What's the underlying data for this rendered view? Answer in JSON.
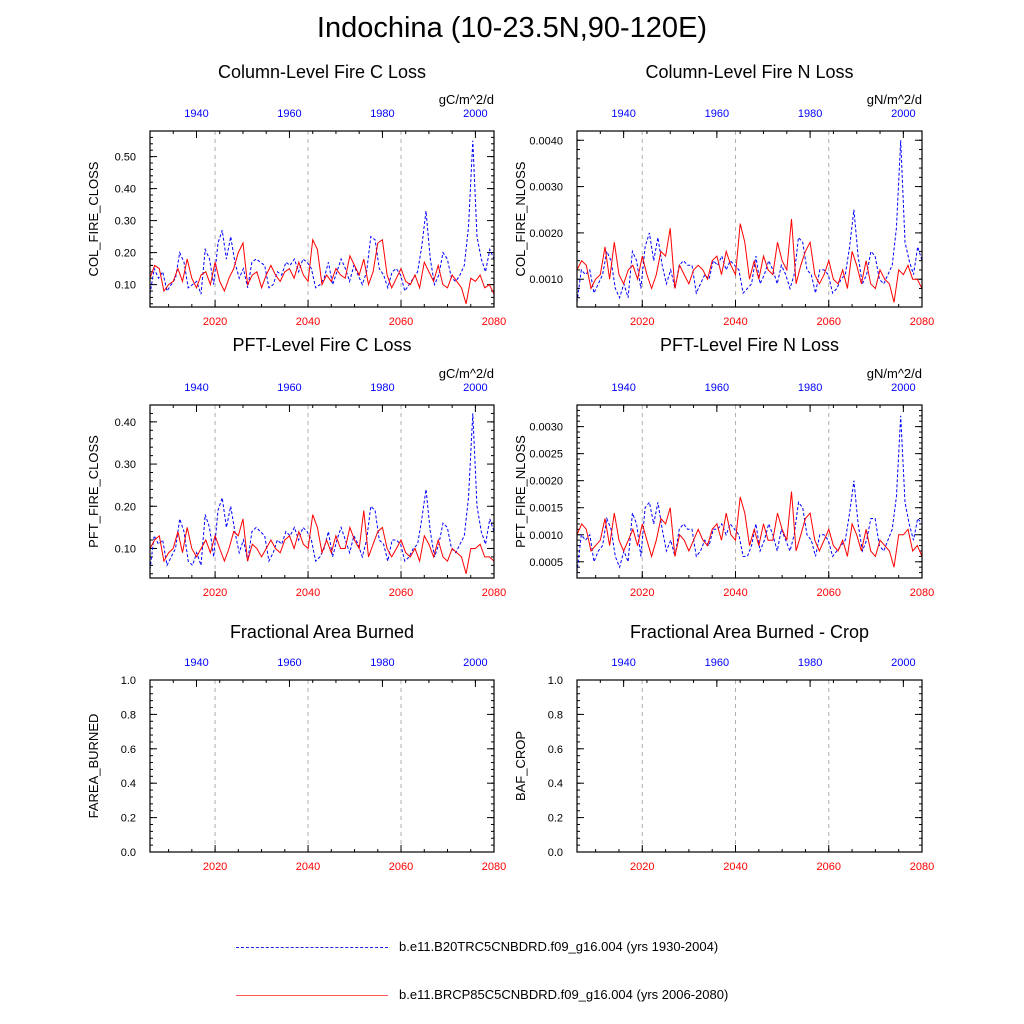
{
  "figure": {
    "title": "Indochina (10-23.5N,90-120E)",
    "legend": [
      {
        "label": "b.e11.B20TRC5CNBDRD.f09_g16.004 (yrs 1930-2004)",
        "color": "#2020e0",
        "style": "dashed"
      },
      {
        "label": "b.e11.BRCP85C5CNBDRD.f09_g16.004 (yrs 2006-2080)",
        "color": "#ff5a5a",
        "style": "solid"
      }
    ]
  },
  "chart_data": [
    {
      "type": "line",
      "title": "Column-Level Fire C Loss",
      "units": "gC/m^2/d",
      "ylabel": "COL_FIRE_CLOSS",
      "ylim": [
        0.03,
        0.58
      ],
      "yticks": [
        0.1,
        0.2,
        0.3,
        0.4,
        0.5
      ],
      "ytick_labels": [
        "0.10",
        "0.20",
        "0.30",
        "0.40",
        "0.50"
      ],
      "x_bottom": {
        "range": [
          2006,
          2080
        ],
        "ticks": [
          2020,
          2040,
          2060,
          2080
        ],
        "color": "#ff0000"
      },
      "x_top": {
        "range": [
          1930,
          2004
        ],
        "ticks": [
          1940,
          1960,
          1980,
          2000
        ],
        "color": "#0000ff"
      },
      "series": [
        {
          "color": "#0000ff",
          "style": "dashed",
          "years": [
            1930,
            2004
          ],
          "values": [
            0.07,
            0.15,
            0.12,
            0.14,
            0.08,
            0.1,
            0.12,
            0.2,
            0.17,
            0.09,
            0.1,
            0.11,
            0.07,
            0.21,
            0.18,
            0.1,
            0.23,
            0.27,
            0.18,
            0.25,
            0.17,
            0.12,
            0.15,
            0.09,
            0.17,
            0.18,
            0.17,
            0.16,
            0.09,
            0.1,
            0.14,
            0.13,
            0.17,
            0.16,
            0.18,
            0.14,
            0.18,
            0.17,
            0.15,
            0.09,
            0.1,
            0.12,
            0.17,
            0.1,
            0.14,
            0.18,
            0.15,
            0.11,
            0.16,
            0.13,
            0.1,
            0.14,
            0.25,
            0.24,
            0.15,
            0.13,
            0.09,
            0.14,
            0.15,
            0.13,
            0.08,
            0.1,
            0.12,
            0.14,
            0.22,
            0.33,
            0.18,
            0.1,
            0.13,
            0.2,
            0.18,
            0.12,
            0.11,
            0.13,
            0.16,
            0.28,
            0.55,
            0.25,
            0.18,
            0.14,
            0.21,
            0.18
          ]
        },
        {
          "color": "#ff0000",
          "style": "solid",
          "years": [
            2006,
            2080
          ],
          "values": [
            0.12,
            0.16,
            0.15,
            0.08,
            0.1,
            0.11,
            0.15,
            0.11,
            0.18,
            0.12,
            0.09,
            0.13,
            0.14,
            0.1,
            0.17,
            0.11,
            0.08,
            0.12,
            0.15,
            0.2,
            0.23,
            0.1,
            0.13,
            0.14,
            0.09,
            0.13,
            0.16,
            0.13,
            0.11,
            0.14,
            0.15,
            0.12,
            0.17,
            0.13,
            0.11,
            0.24,
            0.21,
            0.1,
            0.13,
            0.11,
            0.15,
            0.13,
            0.12,
            0.19,
            0.16,
            0.13,
            0.18,
            0.1,
            0.14,
            0.23,
            0.24,
            0.13,
            0.09,
            0.12,
            0.15,
            0.11,
            0.1,
            0.13,
            0.09,
            0.17,
            0.14,
            0.11,
            0.16,
            0.1,
            0.09,
            0.13,
            0.11,
            0.09,
            0.04,
            0.12,
            0.11,
            0.13,
            0.09,
            0.1,
            0.07
          ]
        }
      ]
    },
    {
      "type": "line",
      "title": "Column-Level Fire N Loss",
      "units": "gN/m^2/d",
      "ylabel": "COL_FIRE_NLOSS",
      "ylim": [
        0.0004,
        0.0042
      ],
      "yticks": [
        0.001,
        0.002,
        0.003,
        0.004
      ],
      "ytick_labels": [
        "0.0010",
        "0.0020",
        "0.0030",
        "0.0040"
      ],
      "x_bottom": {
        "range": [
          2006,
          2080
        ],
        "ticks": [
          2020,
          2040,
          2060,
          2080
        ],
        "color": "#ff0000"
      },
      "x_top": {
        "range": [
          1930,
          2004
        ],
        "ticks": [
          1940,
          1960,
          1980,
          2000
        ],
        "color": "#0000ff"
      },
      "series": [
        {
          "color": "#0000ff",
          "style": "dashed",
          "years": [
            1930,
            2004
          ],
          "values": [
            0.0005,
            0.0012,
            0.0011,
            0.0012,
            0.0007,
            0.0009,
            0.0011,
            0.0016,
            0.0014,
            0.0008,
            0.0006,
            0.0009,
            0.0006,
            0.0016,
            0.0014,
            0.0008,
            0.0017,
            0.002,
            0.0014,
            0.0019,
            0.0013,
            0.0009,
            0.0012,
            0.0008,
            0.0013,
            0.0014,
            0.0013,
            0.0013,
            0.0007,
            0.0009,
            0.0011,
            0.001,
            0.0014,
            0.0013,
            0.0015,
            0.0012,
            0.0014,
            0.0013,
            0.0012,
            0.0007,
            0.0008,
            0.0009,
            0.0015,
            0.0009,
            0.0011,
            0.0014,
            0.0012,
            0.0009,
            0.0013,
            0.0011,
            0.0008,
            0.0011,
            0.0019,
            0.0018,
            0.0012,
            0.0011,
            0.0007,
            0.0012,
            0.0012,
            0.0011,
            0.0007,
            0.0008,
            0.001,
            0.0011,
            0.0017,
            0.0025,
            0.0015,
            0.0009,
            0.0011,
            0.0016,
            0.0015,
            0.001,
            0.0009,
            0.0011,
            0.0013,
            0.0021,
            0.004,
            0.0018,
            0.0014,
            0.0011,
            0.0017,
            0.0014
          ]
        },
        {
          "color": "#ff0000",
          "style": "solid",
          "years": [
            2006,
            2080
          ],
          "values": [
            0.0012,
            0.0014,
            0.0013,
            0.0008,
            0.001,
            0.0011,
            0.0017,
            0.001,
            0.0018,
            0.0011,
            0.0009,
            0.0012,
            0.0013,
            0.001,
            0.0015,
            0.0011,
            0.0008,
            0.0011,
            0.0016,
            0.0015,
            0.0021,
            0.0008,
            0.0013,
            0.0011,
            0.0009,
            0.0012,
            0.0013,
            0.0012,
            0.001,
            0.0014,
            0.0015,
            0.0011,
            0.0016,
            0.0013,
            0.0011,
            0.0022,
            0.0018,
            0.001,
            0.0014,
            0.001,
            0.0015,
            0.0012,
            0.0011,
            0.0018,
            0.0014,
            0.0012,
            0.0023,
            0.0009,
            0.0013,
            0.0016,
            0.0018,
            0.0011,
            0.0009,
            0.0011,
            0.0014,
            0.001,
            0.0009,
            0.0012,
            0.0008,
            0.0016,
            0.0013,
            0.0009,
            0.0014,
            0.0009,
            0.0008,
            0.0012,
            0.001,
            0.0009,
            0.0005,
            0.0012,
            0.0011,
            0.0013,
            0.001,
            0.001,
            0.0008
          ]
        }
      ]
    },
    {
      "type": "line",
      "title": "PFT-Level Fire C Loss",
      "units": "gC/m^2/d",
      "ylabel": "PFT_FIRE_CLOSS",
      "ylim": [
        0.03,
        0.44
      ],
      "yticks": [
        0.1,
        0.2,
        0.3,
        0.4
      ],
      "ytick_labels": [
        "0.10",
        "0.20",
        "0.30",
        "0.40"
      ],
      "x_bottom": {
        "range": [
          2006,
          2080
        ],
        "ticks": [
          2020,
          2040,
          2060,
          2080
        ],
        "color": "#ff0000"
      },
      "x_top": {
        "range": [
          1930,
          2004
        ],
        "ticks": [
          1940,
          1960,
          1980,
          2000
        ],
        "color": "#0000ff"
      },
      "series": [
        {
          "color": "#0000ff",
          "style": "dashed",
          "years": [
            1930,
            2004
          ],
          "values": [
            0.05,
            0.13,
            0.11,
            0.12,
            0.06,
            0.08,
            0.1,
            0.17,
            0.14,
            0.07,
            0.06,
            0.09,
            0.06,
            0.18,
            0.15,
            0.08,
            0.19,
            0.22,
            0.15,
            0.2,
            0.14,
            0.09,
            0.12,
            0.07,
            0.14,
            0.15,
            0.14,
            0.13,
            0.07,
            0.09,
            0.12,
            0.11,
            0.14,
            0.13,
            0.15,
            0.12,
            0.15,
            0.14,
            0.12,
            0.07,
            0.08,
            0.1,
            0.14,
            0.08,
            0.12,
            0.15,
            0.12,
            0.09,
            0.13,
            0.11,
            0.08,
            0.12,
            0.2,
            0.19,
            0.12,
            0.11,
            0.07,
            0.12,
            0.12,
            0.11,
            0.07,
            0.08,
            0.1,
            0.11,
            0.17,
            0.24,
            0.14,
            0.08,
            0.11,
            0.16,
            0.15,
            0.1,
            0.09,
            0.11,
            0.13,
            0.22,
            0.42,
            0.2,
            0.14,
            0.11,
            0.17,
            0.14
          ]
        },
        {
          "color": "#ff0000",
          "style": "solid",
          "years": [
            2006,
            2080
          ],
          "values": [
            0.1,
            0.12,
            0.13,
            0.07,
            0.09,
            0.1,
            0.14,
            0.09,
            0.15,
            0.1,
            0.08,
            0.1,
            0.12,
            0.09,
            0.13,
            0.1,
            0.07,
            0.1,
            0.14,
            0.13,
            0.17,
            0.07,
            0.11,
            0.1,
            0.08,
            0.1,
            0.12,
            0.1,
            0.09,
            0.12,
            0.13,
            0.1,
            0.14,
            0.11,
            0.1,
            0.18,
            0.15,
            0.09,
            0.12,
            0.09,
            0.13,
            0.1,
            0.1,
            0.15,
            0.12,
            0.1,
            0.19,
            0.08,
            0.11,
            0.14,
            0.15,
            0.1,
            0.08,
            0.1,
            0.12,
            0.09,
            0.08,
            0.1,
            0.07,
            0.13,
            0.11,
            0.08,
            0.12,
            0.08,
            0.07,
            0.1,
            0.09,
            0.08,
            0.04,
            0.1,
            0.1,
            0.11,
            0.08,
            0.08,
            0.07
          ]
        }
      ]
    },
    {
      "type": "line",
      "title": "PFT-Level Fire N Loss",
      "units": "gN/m^2/d",
      "ylabel": "PFT_FIRE_NLOSS",
      "ylim": [
        0.0002,
        0.0034
      ],
      "yticks": [
        0.0005,
        0.001,
        0.0015,
        0.002,
        0.0025,
        0.003
      ],
      "ytick_labels": [
        "0.0005",
        "0.0010",
        "0.0015",
        "0.0020",
        "0.0025",
        "0.0030"
      ],
      "x_bottom": {
        "range": [
          2006,
          2080
        ],
        "ticks": [
          2020,
          2040,
          2060,
          2080
        ],
        "color": "#ff0000"
      },
      "x_top": {
        "range": [
          1930,
          2004
        ],
        "ticks": [
          1940,
          1960,
          1980,
          2000
        ],
        "color": "#0000ff"
      },
      "series": [
        {
          "color": "#0000ff",
          "style": "dashed",
          "years": [
            1930,
            2004
          ],
          "values": [
            0.0003,
            0.001,
            0.0009,
            0.001,
            0.0005,
            0.0007,
            0.0008,
            0.0013,
            0.0011,
            0.0006,
            0.0004,
            0.0007,
            0.0005,
            0.0014,
            0.0012,
            0.0006,
            0.0015,
            0.0016,
            0.0012,
            0.0016,
            0.0011,
            0.0007,
            0.0009,
            0.0006,
            0.0011,
            0.0012,
            0.0011,
            0.0011,
            0.0006,
            0.0007,
            0.0009,
            0.0008,
            0.0011,
            0.0011,
            0.0012,
            0.001,
            0.0012,
            0.0011,
            0.001,
            0.0006,
            0.0006,
            0.0008,
            0.0012,
            0.0007,
            0.0009,
            0.0012,
            0.001,
            0.0007,
            0.0011,
            0.0009,
            0.0007,
            0.001,
            0.0016,
            0.0015,
            0.001,
            0.0009,
            0.0006,
            0.001,
            0.001,
            0.0009,
            0.0006,
            0.0007,
            0.0008,
            0.0009,
            0.0014,
            0.002,
            0.0012,
            0.0007,
            0.0009,
            0.0013,
            0.0013,
            0.0008,
            0.0007,
            0.0009,
            0.0011,
            0.0017,
            0.0032,
            0.0016,
            0.0012,
            0.0009,
            0.0013,
            0.0012
          ]
        },
        {
          "color": "#ff0000",
          "style": "solid",
          "years": [
            2006,
            2080
          ],
          "values": [
            0.001,
            0.0012,
            0.0011,
            0.0007,
            0.0008,
            0.0009,
            0.0013,
            0.0008,
            0.0014,
            0.0009,
            0.0007,
            0.0009,
            0.0011,
            0.0008,
            0.0012,
            0.0009,
            0.0006,
            0.0009,
            0.0013,
            0.0012,
            0.0015,
            0.0006,
            0.001,
            0.0009,
            0.0007,
            0.0009,
            0.0011,
            0.0009,
            0.0008,
            0.0011,
            0.0012,
            0.0009,
            0.0014,
            0.001,
            0.0009,
            0.0017,
            0.0014,
            0.0008,
            0.0011,
            0.0008,
            0.0012,
            0.0009,
            0.0009,
            0.0014,
            0.0011,
            0.0009,
            0.0018,
            0.0007,
            0.001,
            0.0013,
            0.0014,
            0.0009,
            0.0007,
            0.0009,
            0.0011,
            0.0008,
            0.0007,
            0.0009,
            0.0006,
            0.0012,
            0.001,
            0.0007,
            0.0011,
            0.0007,
            0.0006,
            0.0009,
            0.0008,
            0.0007,
            0.0004,
            0.001,
            0.001,
            0.0011,
            0.0007,
            0.0008,
            0.0006
          ]
        }
      ]
    },
    {
      "type": "line",
      "title": "Fractional Area Burned",
      "units": "",
      "ylabel": "FAREA_BURNED",
      "ylim": [
        0,
        1
      ],
      "yticks": [
        0,
        0.2,
        0.4,
        0.6,
        0.8,
        1.0
      ],
      "ytick_labels": [
        "0.0",
        "0.2",
        "0.4",
        "0.6",
        "0.8",
        "1.0"
      ],
      "x_bottom": {
        "range": [
          2006,
          2080
        ],
        "ticks": [
          2020,
          2040,
          2060,
          2080
        ],
        "color": "#ff0000"
      },
      "x_top": {
        "range": [
          1930,
          2004
        ],
        "ticks": [
          1940,
          1960,
          1980,
          2000
        ],
        "color": "#0000ff"
      },
      "series": []
    },
    {
      "type": "line",
      "title": "Fractional Area Burned - Crop",
      "units": "",
      "ylabel": "BAF_CROP",
      "ylim": [
        0,
        1
      ],
      "yticks": [
        0,
        0.2,
        0.4,
        0.6,
        0.8,
        1.0
      ],
      "ytick_labels": [
        "0.0",
        "0.2",
        "0.4",
        "0.6",
        "0.8",
        "1.0"
      ],
      "x_bottom": {
        "range": [
          2006,
          2080
        ],
        "ticks": [
          2020,
          2040,
          2060,
          2080
        ],
        "color": "#ff0000"
      },
      "x_top": {
        "range": [
          1930,
          2004
        ],
        "ticks": [
          1940,
          1960,
          1980,
          2000
        ],
        "color": "#0000ff"
      },
      "series": []
    }
  ]
}
